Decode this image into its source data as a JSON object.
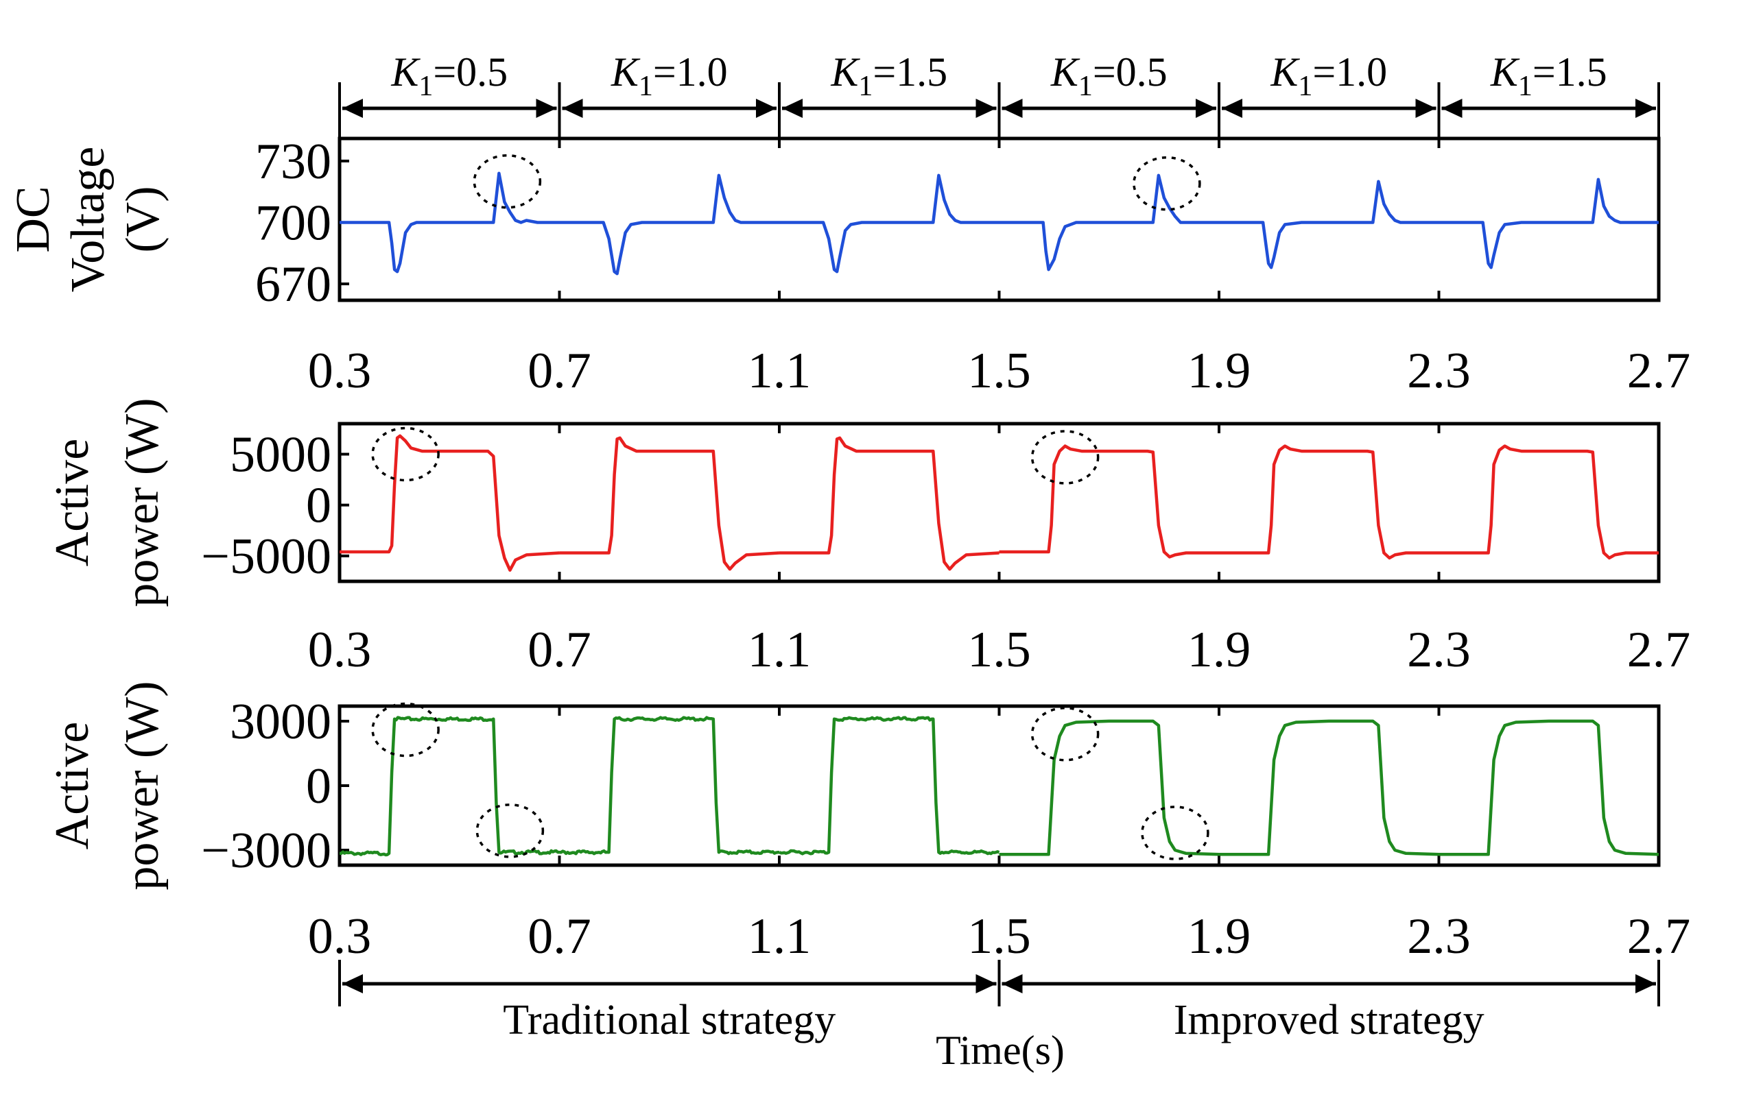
{
  "chart_data": {
    "type": "line",
    "xlabel": "Time(s)",
    "x_ticks": [
      "0.3",
      "0.7",
      "1.1",
      "1.5",
      "1.9",
      "2.3",
      "2.7"
    ],
    "xlim": [
      0.3,
      2.7
    ],
    "k_segments": [
      {
        "label_var": "K",
        "label_sub": "1",
        "label_val": "=0.5",
        "start": 0.3,
        "end": 0.7
      },
      {
        "label_var": "K",
        "label_sub": "1",
        "label_val": "=1.0",
        "start": 0.7,
        "end": 1.1
      },
      {
        "label_var": "K",
        "label_sub": "1",
        "label_val": "=1.5",
        "start": 1.1,
        "end": 1.5
      },
      {
        "label_var": "K",
        "label_sub": "1",
        "label_val": "=0.5",
        "start": 1.5,
        "end": 1.9
      },
      {
        "label_var": "K",
        "label_sub": "1",
        "label_val": "=1.0",
        "start": 1.9,
        "end": 2.3
      },
      {
        "label_var": "K",
        "label_sub": "1",
        "label_val": "=1.5",
        "start": 2.3,
        "end": 2.7
      }
    ],
    "strategies": [
      {
        "label": "Traditional strategy",
        "start": 0.3,
        "end": 1.5
      },
      {
        "label": "Improved strategy",
        "start": 1.5,
        "end": 2.7
      }
    ],
    "panels": [
      {
        "name": "dc-voltage",
        "ylabel_lines": [
          "DC",
          "Voltage",
          "(V)"
        ],
        "ylim": [
          662,
          741
        ],
        "y_ticks": [
          {
            "value": 730,
            "label": "730"
          },
          {
            "value": 700,
            "label": "700"
          },
          {
            "value": 670,
            "label": "670"
          }
        ],
        "color": "#1f4fd8",
        "series": [
          {
            "x": [
              0.3,
              0.39,
              0.395,
              0.4,
              0.405,
              0.41,
              0.42,
              0.43,
              0.44,
              0.45,
              0.46,
              0.5,
              0.58,
              0.59,
              0.6,
              0.61,
              0.62,
              0.63,
              0.64,
              0.66,
              0.7
            ],
            "y": [
              700,
              700,
              690,
              677,
              676,
              680,
              695,
              699,
              700,
              700,
              700,
              700,
              700,
              724,
              710,
              705,
              701,
              700,
              701,
              700,
              700
            ]
          },
          {
            "x": [
              0.7,
              0.78,
              0.79,
              0.8,
              0.805,
              0.81,
              0.82,
              0.83,
              0.85,
              0.9,
              0.98,
              0.99,
              1.0,
              1.01,
              1.02,
              1.03,
              1.04,
              1.1
            ],
            "y": [
              700,
              700,
              692,
              676,
              675,
              682,
              695,
              699,
              700,
              700,
              700,
              723,
              712,
              705,
              701,
              700,
              700,
              700
            ]
          },
          {
            "x": [
              1.1,
              1.18,
              1.19,
              1.2,
              1.205,
              1.21,
              1.22,
              1.23,
              1.25,
              1.3,
              1.38,
              1.39,
              1.4,
              1.41,
              1.42,
              1.43,
              1.44,
              1.5
            ],
            "y": [
              700,
              700,
              692,
              677,
              676,
              683,
              696,
              699,
              700,
              700,
              700,
              723,
              711,
              704,
              701,
              700,
              700,
              700
            ]
          },
          {
            "x": [
              1.5,
              1.58,
              1.585,
              1.59,
              1.6,
              1.61,
              1.62,
              1.64,
              1.7,
              1.78,
              1.79,
              1.8,
              1.81,
              1.82,
              1.83,
              1.86,
              1.9
            ],
            "y": [
              700,
              700,
              686,
              677,
              682,
              692,
              698,
              700,
              700,
              700,
              723,
              712,
              707,
              703,
              700,
              700,
              700
            ]
          },
          {
            "x": [
              1.9,
              1.98,
              1.985,
              1.99,
              1.995,
              2.0,
              2.01,
              2.02,
              2.05,
              2.1,
              2.18,
              2.19,
              2.2,
              2.21,
              2.22,
              2.23,
              2.26,
              2.3
            ],
            "y": [
              700,
              700,
              690,
              680,
              678,
              683,
              695,
              699,
              700,
              700,
              700,
              720,
              709,
              704,
              701,
              700,
              700,
              700
            ]
          },
          {
            "x": [
              2.3,
              2.38,
              2.385,
              2.39,
              2.395,
              2.4,
              2.41,
              2.42,
              2.45,
              2.5,
              2.58,
              2.59,
              2.6,
              2.61,
              2.62,
              2.63,
              2.66,
              2.7
            ],
            "y": [
              700,
              700,
              690,
              680,
              678,
              684,
              695,
              699,
              700,
              700,
              700,
              721,
              708,
              703,
              701,
              700,
              700,
              700
            ]
          }
        ],
        "markers": [
          {
            "x": 0.605,
            "y": 720
          },
          {
            "x": 1.805,
            "y": 719
          }
        ]
      },
      {
        "name": "active-power-1",
        "ylabel_lines": [
          "Active",
          "power (W)"
        ],
        "ylim": [
          -7500,
          8000
        ],
        "y_ticks": [
          {
            "value": 5000,
            "label": "5000"
          },
          {
            "value": 0,
            "label": "0"
          },
          {
            "value": -5000,
            "label": "−5000"
          }
        ],
        "color": "#e8201f",
        "series": [
          {
            "x": [
              0.3,
              0.39,
              0.395,
              0.4,
              0.405,
              0.41,
              0.42,
              0.43,
              0.45,
              0.5,
              0.57,
              0.58,
              0.59,
              0.6,
              0.61,
              0.62,
              0.64,
              0.7
            ],
            "y": [
              -4600,
              -4600,
              -4000,
              2000,
              6600,
              6800,
              6300,
              5600,
              5300,
              5300,
              5300,
              4800,
              -3000,
              -5200,
              -6400,
              -5400,
              -4900,
              -4700
            ]
          },
          {
            "x": [
              0.7,
              0.79,
              0.795,
              0.8,
              0.805,
              0.81,
              0.82,
              0.84,
              0.9,
              0.97,
              0.98,
              0.99,
              1.0,
              1.01,
              1.02,
              1.04,
              1.1
            ],
            "y": [
              -4700,
              -4700,
              -3000,
              3000,
              6500,
              6600,
              5800,
              5300,
              5300,
              5300,
              5300,
              -2000,
              -5600,
              -6300,
              -5700,
              -4900,
              -4700
            ]
          },
          {
            "x": [
              1.1,
              1.19,
              1.195,
              1.2,
              1.205,
              1.21,
              1.22,
              1.24,
              1.3,
              1.37,
              1.38,
              1.39,
              1.4,
              1.41,
              1.42,
              1.44,
              1.5
            ],
            "y": [
              -4700,
              -4700,
              -3000,
              3000,
              6500,
              6600,
              5800,
              5300,
              5300,
              5300,
              5300,
              -1800,
              -5600,
              -6300,
              -5700,
              -4900,
              -4700
            ]
          },
          {
            "x": [
              1.5,
              1.59,
              1.595,
              1.6,
              1.61,
              1.62,
              1.63,
              1.65,
              1.7,
              1.77,
              1.78,
              1.79,
              1.8,
              1.81,
              1.82,
              1.84,
              1.9
            ],
            "y": [
              -4600,
              -4600,
              -2000,
              4000,
              5300,
              5800,
              5500,
              5300,
              5300,
              5300,
              5200,
              -2000,
              -4600,
              -5100,
              -4900,
              -4700,
              -4700
            ]
          },
          {
            "x": [
              1.9,
              1.99,
              1.995,
              2.0,
              2.01,
              2.02,
              2.03,
              2.05,
              2.1,
              2.17,
              2.18,
              2.19,
              2.2,
              2.21,
              2.22,
              2.24,
              2.3
            ],
            "y": [
              -4700,
              -4700,
              -2000,
              4000,
              5400,
              5800,
              5500,
              5300,
              5300,
              5300,
              5200,
              -2000,
              -4700,
              -5200,
              -4900,
              -4700,
              -4700
            ]
          },
          {
            "x": [
              2.3,
              2.39,
              2.395,
              2.4,
              2.41,
              2.42,
              2.43,
              2.45,
              2.5,
              2.57,
              2.58,
              2.59,
              2.6,
              2.61,
              2.62,
              2.64,
              2.7
            ],
            "y": [
              -4700,
              -4700,
              -2000,
              4000,
              5400,
              5800,
              5500,
              5300,
              5300,
              5300,
              5200,
              -2000,
              -4700,
              -5200,
              -4900,
              -4700,
              -4700
            ]
          }
        ],
        "markers": [
          {
            "x": 0.42,
            "y": 5000
          },
          {
            "x": 1.62,
            "y": 4700
          }
        ]
      },
      {
        "name": "active-power-2",
        "ylabel_lines": [
          "Active",
          "power (W)"
        ],
        "ylim": [
          -3700,
          3700
        ],
        "y_ticks": [
          {
            "value": 3000,
            "label": "3000"
          },
          {
            "value": 0,
            "label": "0"
          },
          {
            "value": -3000,
            "label": "−3000"
          }
        ],
        "color": "#1f8a1f",
        "series": [
          {
            "x": [
              0.3,
              0.39,
              0.395,
              0.4,
              0.58,
              0.585,
              0.59,
              0.7
            ],
            "y": [
              -3150,
              -3150,
              600,
              3100,
              3100,
              -800,
              -3100,
              -3100
            ],
            "noise": true
          },
          {
            "x": [
              0.7,
              0.79,
              0.795,
              0.8,
              0.98,
              0.985,
              0.99,
              1.1
            ],
            "y": [
              -3100,
              -3100,
              600,
              3100,
              3100,
              -800,
              -3100,
              -3100
            ],
            "noise": true
          },
          {
            "x": [
              1.1,
              1.19,
              1.195,
              1.2,
              1.38,
              1.385,
              1.39,
              1.5
            ],
            "y": [
              -3100,
              -3100,
              600,
              3100,
              3100,
              -800,
              -3100,
              -3100
            ],
            "noise": true
          },
          {
            "x": [
              1.5,
              1.59,
              1.6,
              1.61,
              1.62,
              1.64,
              1.7,
              1.78,
              1.79,
              1.8,
              1.81,
              1.82,
              1.84,
              1.9
            ],
            "y": [
              -3200,
              -3200,
              1200,
              2300,
              2800,
              2950,
              3000,
              3000,
              2800,
              -1500,
              -2600,
              -3000,
              -3150,
              -3200
            ]
          },
          {
            "x": [
              1.9,
              1.99,
              2.0,
              2.01,
              2.02,
              2.04,
              2.1,
              2.18,
              2.19,
              2.2,
              2.21,
              2.22,
              2.24,
              2.3
            ],
            "y": [
              -3200,
              -3200,
              1200,
              2300,
              2800,
              2950,
              3000,
              3000,
              2800,
              -1500,
              -2600,
              -3000,
              -3150,
              -3200
            ]
          },
          {
            "x": [
              2.3,
              2.39,
              2.4,
              2.41,
              2.42,
              2.44,
              2.5,
              2.58,
              2.59,
              2.6,
              2.61,
              2.62,
              2.64,
              2.7
            ],
            "y": [
              -3200,
              -3200,
              1200,
              2300,
              2800,
              2950,
              3000,
              3000,
              2800,
              -1500,
              -2600,
              -3000,
              -3150,
              -3200
            ]
          }
        ],
        "markers": [
          {
            "x": 0.42,
            "y": 2600
          },
          {
            "x": 0.61,
            "y": -2100
          },
          {
            "x": 1.62,
            "y": 2400
          },
          {
            "x": 1.82,
            "y": -2200
          }
        ]
      }
    ]
  }
}
